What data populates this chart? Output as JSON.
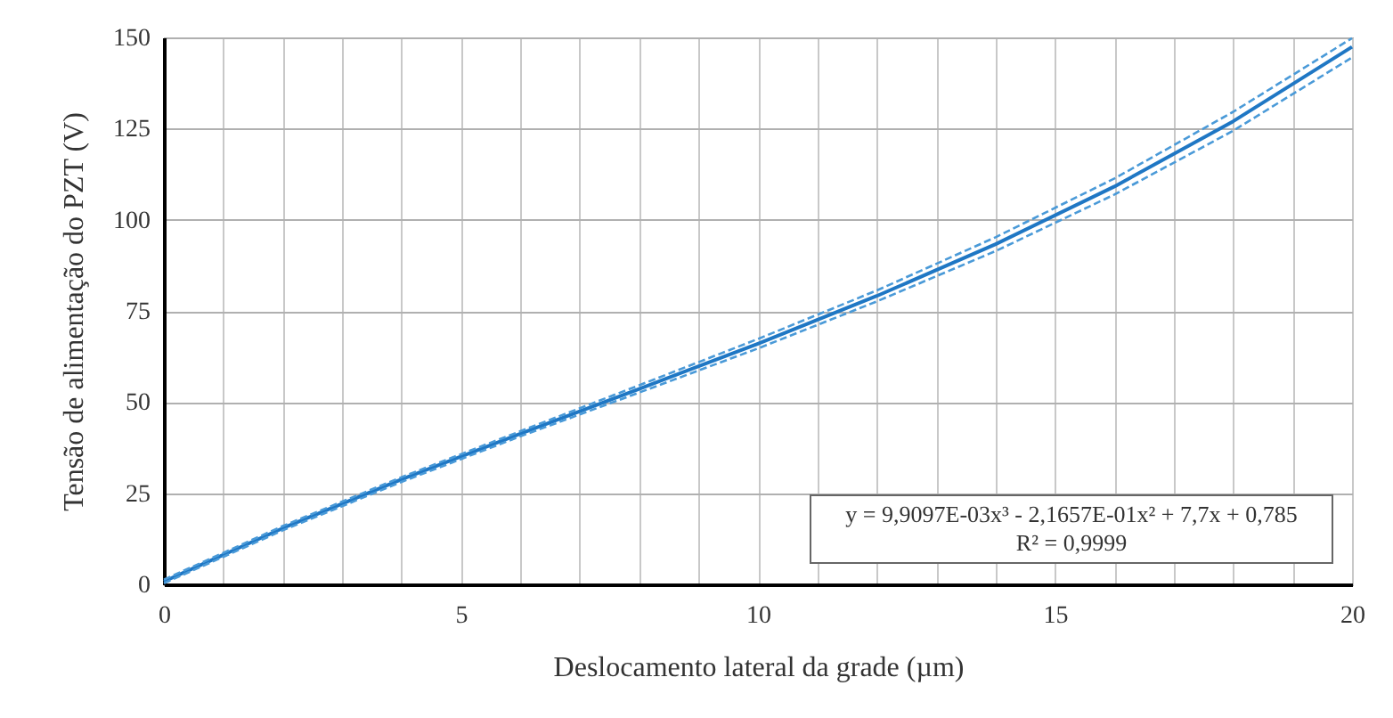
{
  "chart_data": {
    "type": "line",
    "xlabel": "Deslocamento lateral da grade (µm)",
    "ylabel": "Tensão de alimentação do PZT (V)",
    "x": [
      0,
      2,
      4,
      6,
      8,
      10,
      12,
      14,
      16,
      18,
      20
    ],
    "series": [
      {
        "color": "#1f77c4",
        "line_style": "solid",
        "values": [
          0.8,
          15.4,
          28.8,
          41.3,
          53.6,
          66.0,
          79.1,
          93.3,
          109.1,
          127.0,
          147.4
        ]
      },
      {
        "color": "#4a9ad8",
        "line_style": "dashed",
        "values": [
          1.3,
          16.0,
          29.4,
          42.0,
          54.6,
          67.3,
          80.6,
          95.2,
          111.3,
          129.6,
          149.8
        ]
      },
      {
        "color": "#4a9ad8",
        "line_style": "dashed",
        "values": [
          0.3,
          14.8,
          28.1,
          40.6,
          52.6,
          64.7,
          77.6,
          91.4,
          106.9,
          124.4,
          144.5
        ]
      }
    ],
    "xlim": [
      0,
      20
    ],
    "xticks": [
      0,
      {
        "value": 1,
        "label": null
      },
      {
        "value": 2,
        "label": null
      },
      {
        "value": 3,
        "label": null
      },
      {
        "value": 4,
        "label": null
      },
      5,
      {
        "value": 6,
        "label": null
      },
      {
        "value": 7,
        "label": null
      },
      {
        "value": 8,
        "label": null
      },
      {
        "value": 9,
        "label": null
      },
      10,
      {
        "value": 11,
        "label": null
      },
      {
        "value": 12,
        "label": null
      },
      {
        "value": 13,
        "label": null
      },
      {
        "value": 14,
        "label": null
      },
      15,
      {
        "value": 16,
        "label": null
      },
      {
        "value": 17,
        "label": null
      },
      {
        "value": 18,
        "label": null
      },
      {
        "value": 19,
        "label": null
      },
      20
    ],
    "ylim": [
      0,
      150
    ],
    "yticks": [
      0,
      25,
      50,
      75,
      100,
      125,
      150
    ],
    "grid": true,
    "annotations": [
      "y = 9,9097E-03x³ - 2,1657E-01x² + 7,7x + 0,785",
      "R² = 0,9999"
    ]
  }
}
